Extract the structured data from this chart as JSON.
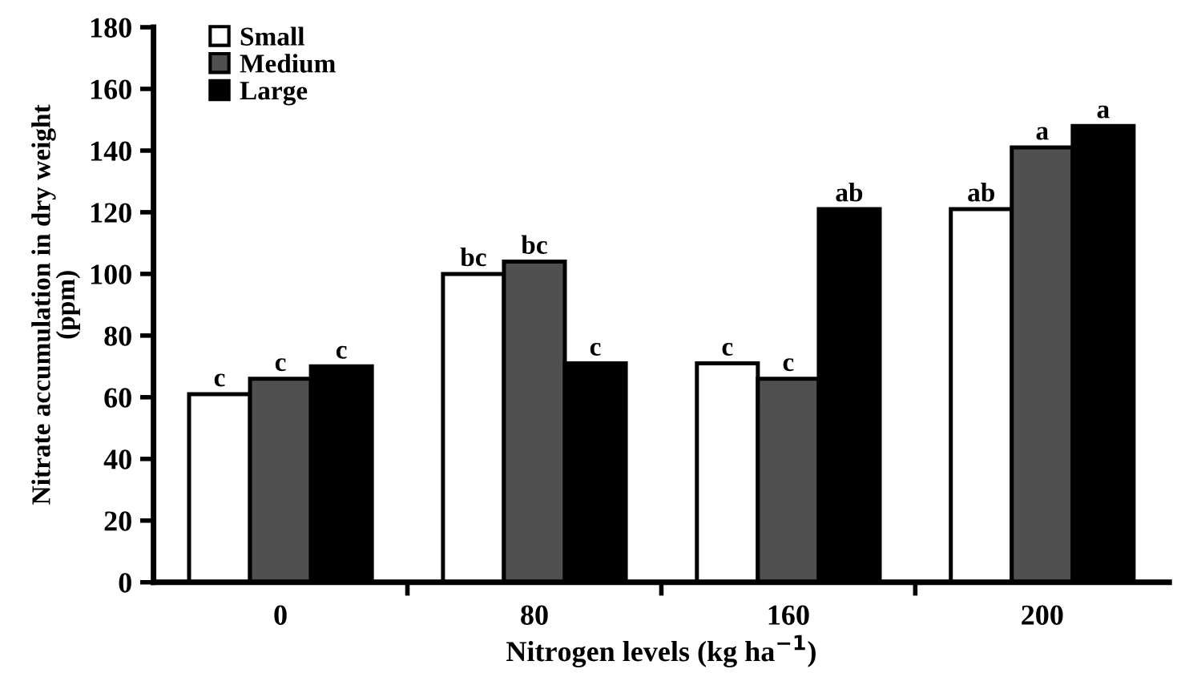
{
  "chart_data": {
    "type": "bar",
    "xlabel": "Nitrogen levels (kg ha$^{−1}$)",
    "ylabel": "Nitrate accumulation in dry weight\n(ppm)",
    "categories": [
      "0",
      "80",
      "160",
      "200"
    ],
    "series": [
      {
        "name": "Small",
        "color": "#ffffff",
        "values": [
          61,
          100,
          71,
          121
        ],
        "value_labels": [
          "c",
          "bc",
          "c",
          "ab"
        ]
      },
      {
        "name": "Medium",
        "color": "#505050",
        "values": [
          66,
          104,
          66,
          141
        ],
        "value_labels": [
          "c",
          "bc",
          "c",
          "a"
        ]
      },
      {
        "name": "Large",
        "color": "#000000",
        "values": [
          70,
          71,
          121,
          148
        ],
        "value_labels": [
          "c",
          "c",
          "ab",
          "a"
        ]
      }
    ],
    "ylim": [
      0,
      180
    ],
    "yticks": [
      0,
      20,
      40,
      60,
      80,
      100,
      120,
      140,
      160,
      180
    ],
    "grid": false,
    "legend": "top left"
  }
}
